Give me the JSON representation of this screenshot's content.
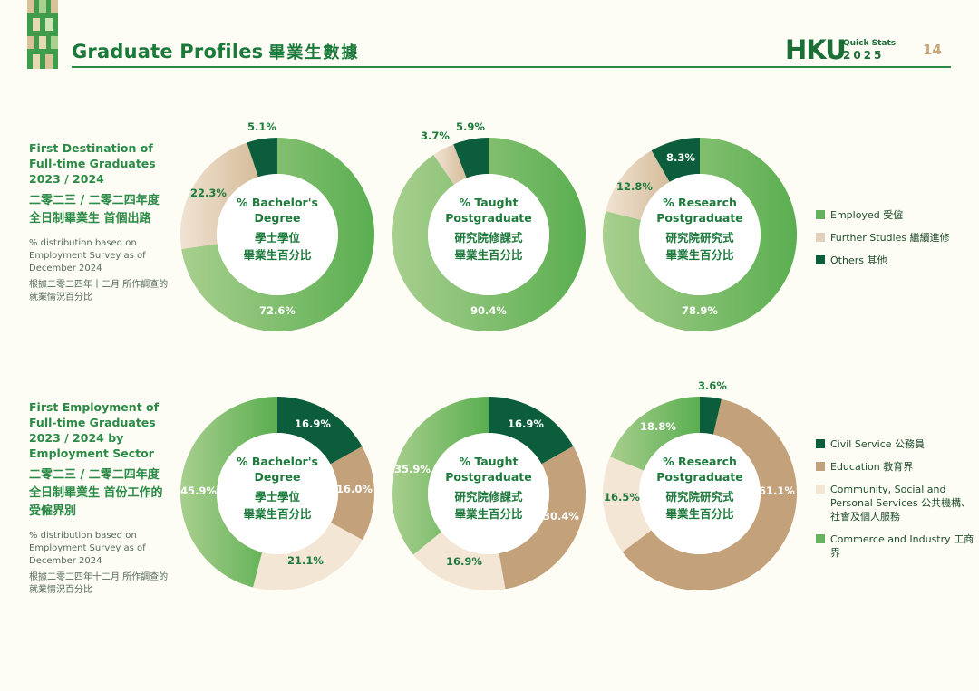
{
  "header": {
    "title_en": "Graduate Profiles",
    "title_zh": "畢業生數據",
    "logo_text": "HKU",
    "logo_subtitle": "Quick Stats",
    "logo_year": "2025",
    "page_number": "14"
  },
  "colors": {
    "employed": "#66b15a",
    "further": "#e4d1bb",
    "others": "#0b5d3b",
    "civil": "#0b5d3b",
    "education": "#c3a27b",
    "community": "#f4e6d4",
    "commerce": "#6ab35c",
    "label": "#1e7a3c"
  },
  "section1": {
    "title_en": "First Destination of Full-time Graduates 2023 / 2024",
    "title_zh": "二零二三 / 二零二四年度 全日制畢業生 首個出路",
    "note_en": "% distribution based on Employment Survey as of December 2024",
    "note_zh": "根據二零二四年十二月 所作調查的就業情況百分比",
    "legend": [
      {
        "label": "Employed 受僱",
        "color": "#66b15a"
      },
      {
        "label": "Further Studies 繼續進修",
        "color": "#e4d1bb"
      },
      {
        "label": "Others 其他",
        "color": "#0b5d3b"
      }
    ]
  },
  "section2": {
    "title_en": "First Employment of Full-time Graduates 2023 / 2024 by Employment Sector",
    "title_zh": "二零二三 / 二零二四年度 全日制畢業生 首份工作的受僱界別",
    "note_en": "% distribution based on Employment Survey as of December 2024",
    "note_zh": "根據二零二四年十二月 所作調查的就業情況百分比",
    "legend": [
      {
        "label": "Civil Service 公務員",
        "color": "#0b5d3b"
      },
      {
        "label": "Education 教育界",
        "color": "#c3a27b"
      },
      {
        "label": "Community, Social and Personal Services 公共機構、社會及個人服務",
        "color": "#f4e6d4"
      },
      {
        "label": "Commerce and Industry 工商界",
        "color": "#6ab35c"
      }
    ]
  },
  "chart_data": [
    {
      "type": "pie",
      "title": "% Bachelor's Degree 學士學位 畢業生百分比",
      "title_lines": [
        "% Bachelor's",
        "Degree",
        "學士學位",
        "畢業生百分比"
      ],
      "categories": [
        "Employed 受僱",
        "Further Studies 繼續進修",
        "Others 其他"
      ],
      "values": [
        72.6,
        22.3,
        5.1
      ],
      "labels": [
        "72.6%",
        "22.3%",
        "5.1%"
      ]
    },
    {
      "type": "pie",
      "title": "% Taught Postgraduate 研究院修課式 畢業生百分比",
      "title_lines": [
        "% Taught",
        "Postgraduate",
        "研究院修課式",
        "畢業生百分比"
      ],
      "categories": [
        "Employed 受僱",
        "Further Studies 繼續進修",
        "Others 其他"
      ],
      "values": [
        90.4,
        3.7,
        5.9
      ],
      "labels": [
        "90.4%",
        "3.7%",
        "5.9%"
      ]
    },
    {
      "type": "pie",
      "title": "% Research Postgraduate 研究院研究式 畢業生百分比",
      "title_lines": [
        "% Research",
        "Postgraduate",
        "研究院研究式",
        "畢業生百分比"
      ],
      "categories": [
        "Employed 受僱",
        "Further Studies 繼續進修",
        "Others 其他"
      ],
      "values": [
        78.9,
        12.8,
        8.3
      ],
      "labels": [
        "78.9%",
        "12.8%",
        "8.3%"
      ]
    },
    {
      "type": "pie",
      "title": "% Bachelor's Degree 學士學位 畢業生百分比",
      "title_lines": [
        "% Bachelor's",
        "Degree",
        "學士學位",
        "畢業生百分比"
      ],
      "categories": [
        "Civil Service 公務員",
        "Education 教育界",
        "Community, Social and Personal Services",
        "Commerce and Industry 工商界"
      ],
      "values": [
        16.9,
        16.0,
        21.1,
        45.9
      ],
      "labels": [
        "16.9%",
        "16.0%",
        "21.1%",
        "45.9%"
      ]
    },
    {
      "type": "pie",
      "title": "% Taught Postgraduate 研究院修課式 畢業生百分比",
      "title_lines": [
        "% Taught",
        "Postgraduate",
        "研究院修課式",
        "畢業生百分比"
      ],
      "categories": [
        "Civil Service 公務員",
        "Education 教育界",
        "Community, Social and Personal Services",
        "Commerce and Industry 工商界"
      ],
      "values": [
        16.9,
        30.4,
        16.9,
        35.9
      ],
      "labels": [
        "16.9%",
        "30.4%",
        "16.9%",
        "35.9%"
      ]
    },
    {
      "type": "pie",
      "title": "% Research Postgraduate 研究院研究式 畢業生百分比",
      "title_lines": [
        "% Research",
        "Postgraduate",
        "研究院研究式",
        "畢業生百分比"
      ],
      "categories": [
        "Civil Service 公務員",
        "Education 教育界",
        "Community, Social and Personal Services",
        "Commerce and Industry 工商界"
      ],
      "values": [
        3.6,
        61.1,
        16.5,
        18.8
      ],
      "labels": [
        "3.6%",
        "61.1%",
        "16.5%",
        "18.8%"
      ]
    }
  ]
}
